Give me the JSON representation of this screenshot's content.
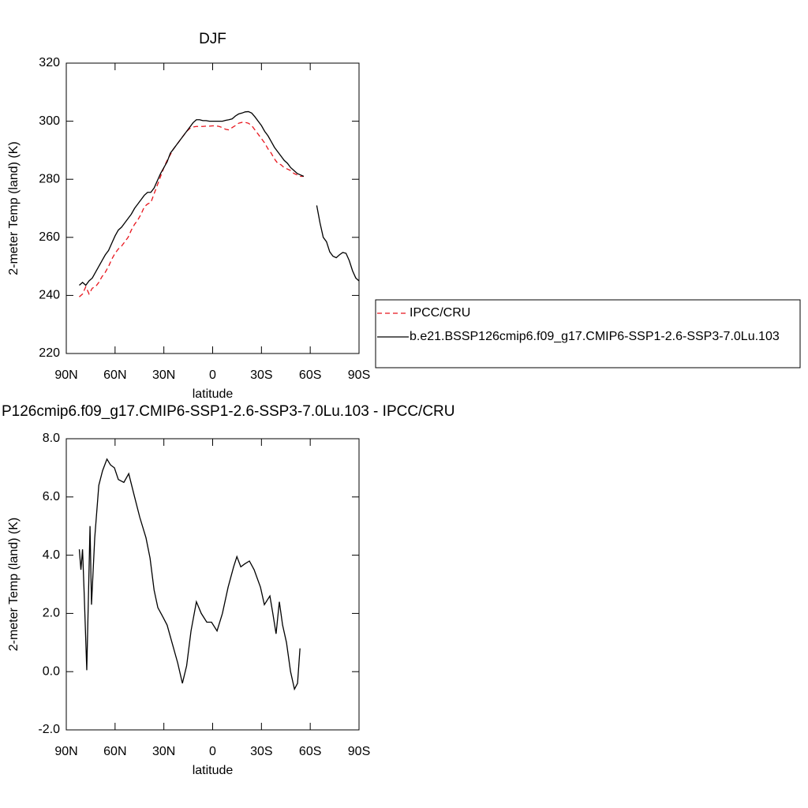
{
  "chart_data": [
    {
      "type": "line",
      "title": "DJF",
      "xlabel": "latitude",
      "ylabel": "2-meter Temp (land) (K)",
      "xlim": [
        90,
        -90
      ],
      "ylim": [
        220,
        320
      ],
      "xticks": [
        {
          "value": 90,
          "label": "90N"
        },
        {
          "value": 60,
          "label": "60N"
        },
        {
          "value": 30,
          "label": "30N"
        },
        0,
        {
          "value": -30,
          "label": "30S"
        },
        {
          "value": -60,
          "label": "60S"
        },
        {
          "value": -90,
          "label": "90S"
        }
      ],
      "yticks": [
        220,
        240,
        260,
        280,
        300,
        320
      ],
      "legend": "outside-right",
      "x": [
        82,
        80,
        78,
        76,
        74,
        72,
        70,
        68,
        66,
        64,
        62,
        60,
        58,
        56,
        54,
        52,
        50,
        48,
        46,
        44,
        42,
        40,
        38,
        36,
        34,
        32,
        30,
        28,
        26,
        24,
        22,
        20,
        18,
        16,
        14,
        12,
        10,
        8,
        6,
        4,
        2,
        0,
        -2,
        -4,
        -6,
        -8,
        -10,
        -12,
        -14,
        -16,
        -18,
        -20,
        -22,
        -24,
        -26,
        -28,
        -30,
        -32,
        -34,
        -36,
        -38,
        -40,
        -42,
        -44,
        -46,
        -48,
        -50,
        -52,
        -54,
        -56,
        -58,
        -60,
        -62,
        -64,
        -66,
        -68,
        -70,
        -72,
        -74,
        -76,
        -78,
        -80,
        -82,
        -84,
        -86,
        -88,
        -90
      ],
      "series": [
        {
          "name": "IPCC/CRU",
          "color": "#e8141c",
          "dashed": true,
          "values": [
            239.5,
            240.5,
            243,
            240.5,
            242.5,
            243,
            244.5,
            246.5,
            248,
            250,
            252.5,
            254.5,
            256,
            257,
            258.5,
            260,
            262.5,
            264.5,
            266,
            268,
            270.5,
            271.5,
            272,
            275,
            278,
            281,
            284,
            286.5,
            288.5,
            290.5,
            292,
            293.5,
            295,
            296.5,
            297.5,
            298,
            298.2,
            298.2,
            298.2,
            298.3,
            298.3,
            298.4,
            298.4,
            298.2,
            297.8,
            297.2,
            297,
            297.8,
            298.5,
            299.3,
            299.6,
            299.6,
            299.3,
            298.5,
            297,
            295.5,
            294,
            292.5,
            290.5,
            289,
            287,
            285.5,
            285,
            284,
            283.5,
            283,
            282,
            281.5,
            281,
            281,
            null,
            null,
            null,
            null,
            null,
            null,
            null,
            null,
            null,
            null,
            null,
            null,
            null,
            null,
            null,
            null,
            null
          ]
        },
        {
          "name": "b.e21.BSSP126cmip6.f09_g17.CMIP6-SSP1-2.6-SSP3-7.0Lu.103",
          "color": "#000000",
          "dashed": false,
          "values": [
            243.5,
            244.5,
            243.5,
            245,
            246,
            248,
            250,
            252,
            254,
            255.5,
            258,
            260.5,
            262.5,
            263.5,
            265,
            266.5,
            268,
            270,
            271.5,
            273,
            274.5,
            275.5,
            275.5,
            277,
            279.5,
            282,
            284,
            286,
            289,
            290.5,
            292,
            293.5,
            295,
            296.5,
            298,
            299.5,
            300.5,
            300.5,
            300.2,
            300.2,
            300,
            300,
            300,
            300,
            300,
            300.3,
            300.5,
            300.8,
            301.8,
            302.5,
            302.8,
            303.2,
            303.3,
            302.8,
            301.5,
            300,
            298.5,
            296.5,
            295,
            293,
            291,
            289.5,
            288,
            286.5,
            285.5,
            284,
            283,
            282,
            281.5,
            281,
            null,
            null,
            null,
            271,
            265,
            260,
            258.5,
            255,
            253.5,
            253,
            254,
            254.8,
            254.5,
            252,
            248.5,
            246,
            245
          ]
        }
      ]
    },
    {
      "type": "line",
      "title": "P126cmip6.f09_g17.CMIP6-SSP1-2.6-SSP3-7.0Lu.103 - IPCC/CRU",
      "xlabel": "latitude",
      "ylabel": "2-meter Temp (land) (K)",
      "xlim": [
        90,
        -90
      ],
      "ylim": [
        -2,
        8
      ],
      "xticks": [
        {
          "value": 90,
          "label": "90N"
        },
        {
          "value": 60,
          "label": "60N"
        },
        {
          "value": 30,
          "label": "30N"
        },
        0,
        {
          "value": -30,
          "label": "30S"
        },
        {
          "value": -60,
          "label": "60S"
        },
        {
          "value": -90,
          "label": "90S"
        }
      ],
      "yticks": [
        {
          "value": -2,
          "label": "-2.0"
        },
        {
          "value": 0,
          "label": "0.0"
        },
        {
          "value": 2,
          "label": "2.0"
        },
        {
          "value": 4,
          "label": "4.0"
        },
        {
          "value": 6,
          "label": "6.0"
        },
        {
          "value": 8,
          "label": "8.0"
        }
      ],
      "x": [
        82,
        81,
        80,
        79,
        77.4,
        75.4,
        74.5,
        72.5,
        70,
        67.7,
        65,
        62.8,
        60.4,
        58,
        54.6,
        51.6,
        48,
        44.8,
        41,
        38.5,
        36,
        33.7,
        30.8,
        28,
        25,
        21.5,
        18.6,
        16,
        13.3,
        10,
        7,
        3.6,
        0.7,
        -2.7,
        -6,
        -9.5,
        -12.9,
        -14.9,
        -17.3,
        -19.7,
        -22.6,
        -25.5,
        -29.4,
        -31.8,
        -35.2,
        -37,
        -39,
        -41,
        -43,
        -45.4,
        -47.9,
        -50.3,
        -52.2,
        -53.7
      ],
      "series": [
        {
          "color": "#000000",
          "dashed": false,
          "values": [
            4.2,
            3.5,
            4.2,
            2.7,
            0.05,
            5.0,
            2.3,
            4.6,
            6.4,
            6.9,
            7.3,
            7.1,
            7.0,
            6.6,
            6.5,
            6.8,
            6.0,
            5.3,
            4.6,
            3.9,
            2.8,
            2.2,
            1.9,
            1.6,
            1.0,
            0.3,
            -0.4,
            0.2,
            1.4,
            2.4,
            2.0,
            1.7,
            1.7,
            1.4,
            2.0,
            2.9,
            3.6,
            3.95,
            3.6,
            3.7,
            3.8,
            3.5,
            2.9,
            2.3,
            2.6,
            2.0,
            1.3,
            2.4,
            1.6,
            1.0,
            0.0,
            -0.6,
            -0.4,
            0.8
          ]
        }
      ]
    }
  ]
}
